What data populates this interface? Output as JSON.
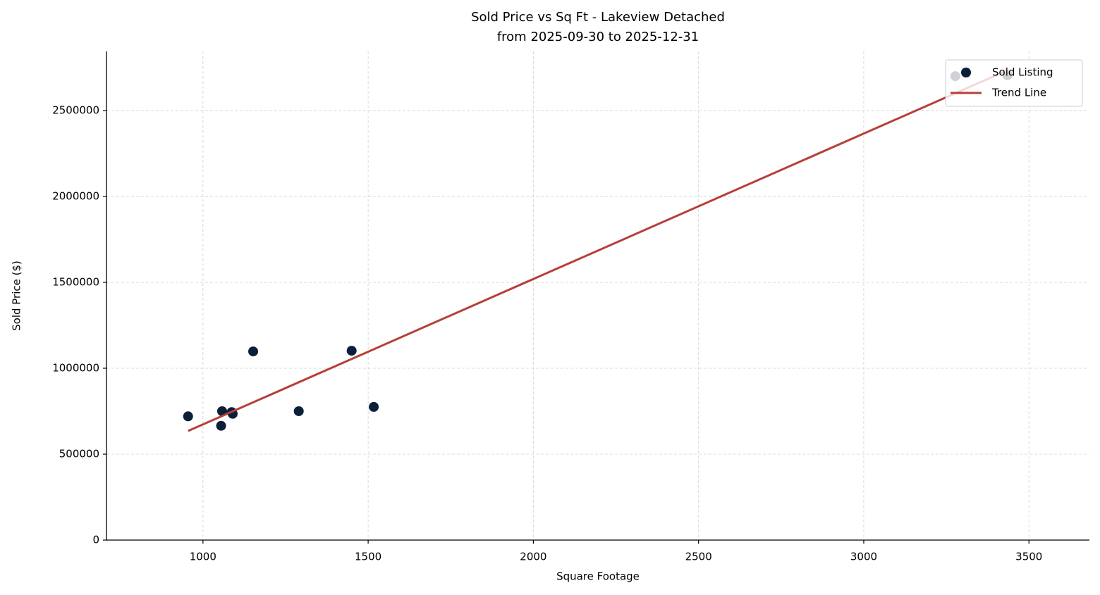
{
  "chart_data": {
    "type": "scatter",
    "title": "Sold Price vs Sq Ft - Lakeview Detached",
    "subtitle": "from 2025-09-30 to 2025-12-31",
    "x_label": "Square Footage",
    "y_label": "Sold Price ($)",
    "xlim": [
      708,
      3683
    ],
    "ylim": [
      0,
      2844000
    ],
    "xticks": [
      1000,
      1500,
      2000,
      2500,
      3000,
      3500
    ],
    "yticks": [
      0,
      500000,
      1000000,
      1500000,
      2000000,
      2500000
    ],
    "grid": true,
    "legend": "upper-right",
    "series": [
      {
        "name": "Sold Listing",
        "type": "scatter",
        "color": "#0b1f3a",
        "x": [
          955,
          1055,
          1058,
          1087,
          1090,
          1152,
          1290,
          1450,
          1517,
          3277,
          3435
        ],
        "values": [
          720000,
          665000,
          750000,
          745000,
          735000,
          1098000,
          750000,
          1102000,
          775000,
          2700000,
          2705000
        ]
      },
      {
        "name": "Trend Line",
        "type": "line",
        "color": "#b5403a",
        "x": [
          955,
          3435
        ],
        "values": [
          635000,
          2734000
        ]
      }
    ]
  }
}
